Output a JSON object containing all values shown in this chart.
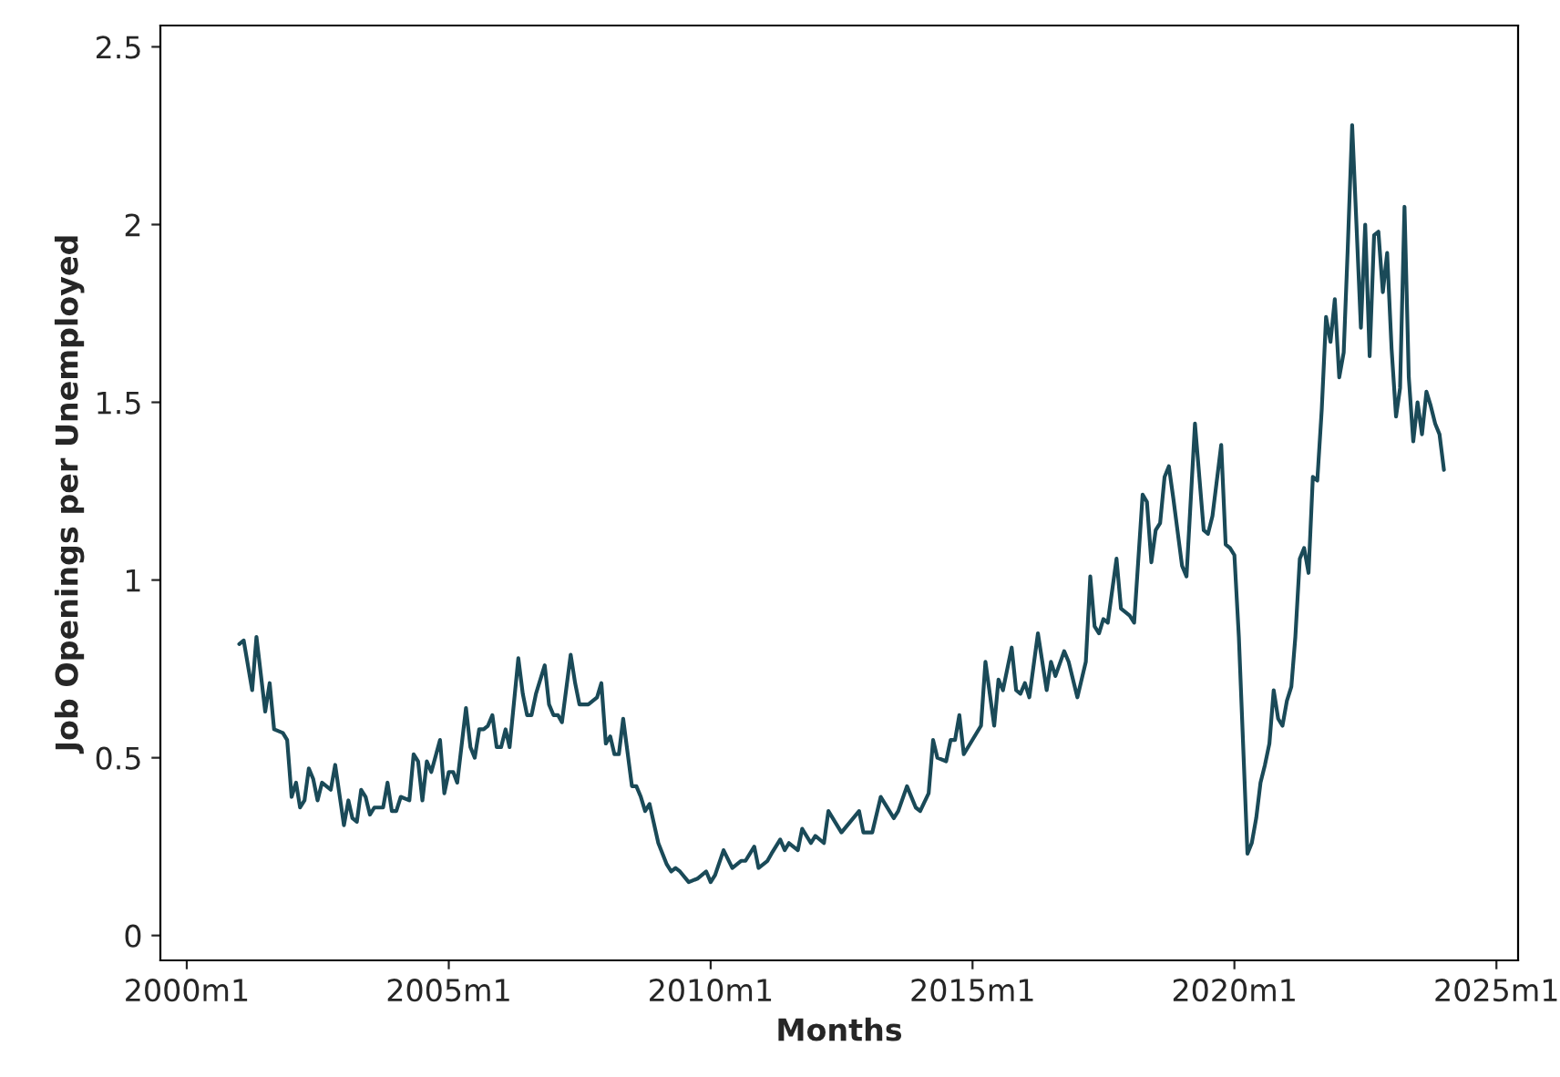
{
  "chart_data": {
    "type": "line",
    "xlabel": "Months",
    "ylabel": "Job Openings per Unemployed",
    "x": [
      "2001-01",
      "2001-02",
      "2001-04",
      "2001-05",
      "2001-07",
      "2001-08",
      "2001-09",
      "2001-11",
      "2001-12",
      "2002-01",
      "2002-02",
      "2002-03",
      "2002-04",
      "2002-05",
      "2002-06",
      "2002-07",
      "2002-08",
      "2002-09",
      "2002-10",
      "2002-11",
      "2003-01",
      "2003-02",
      "2003-03",
      "2003-04",
      "2003-05",
      "2003-06",
      "2003-07",
      "2003-08",
      "2003-10",
      "2003-11",
      "2003-12",
      "2004-01",
      "2004-02",
      "2004-04",
      "2004-05",
      "2004-06",
      "2004-07",
      "2004-08",
      "2004-09",
      "2004-11",
      "2004-12",
      "2005-01",
      "2005-02",
      "2005-03",
      "2005-05",
      "2005-06",
      "2005-07",
      "2005-08",
      "2005-09",
      "2005-10",
      "2005-11",
      "2005-12",
      "2006-01",
      "2006-02",
      "2006-03",
      "2006-05",
      "2006-06",
      "2006-07",
      "2006-08",
      "2006-09",
      "2006-11",
      "2006-12",
      "2007-01",
      "2007-02",
      "2007-03",
      "2007-05",
      "2007-06",
      "2007-07",
      "2007-09",
      "2007-11",
      "2007-12",
      "2008-01",
      "2008-02",
      "2008-03",
      "2008-04",
      "2008-05",
      "2008-07",
      "2008-08",
      "2008-09",
      "2008-10",
      "2008-11",
      "2009-01",
      "2009-03",
      "2009-04",
      "2009-05",
      "2009-06",
      "2009-08",
      "2009-10",
      "2009-12",
      "2010-01",
      "2010-02",
      "2010-04",
      "2010-06",
      "2010-08",
      "2010-09",
      "2010-11",
      "2010-12",
      "2011-02",
      "2011-03",
      "2011-05",
      "2011-06",
      "2011-07",
      "2011-09",
      "2011-10",
      "2011-12",
      "2012-01",
      "2012-03",
      "2012-04",
      "2012-07",
      "2012-11",
      "2012-12",
      "2013-02",
      "2013-04",
      "2013-07",
      "2013-08",
      "2013-10",
      "2013-12",
      "2014-01",
      "2014-03",
      "2014-04",
      "2014-05",
      "2014-07",
      "2014-08",
      "2014-09",
      "2014-10",
      "2014-11",
      "2015-03",
      "2015-04",
      "2015-06",
      "2015-07",
      "2015-08",
      "2015-10",
      "2015-11",
      "2015-12",
      "2016-01",
      "2016-02",
      "2016-04",
      "2016-06",
      "2016-07",
      "2016-08",
      "2016-10",
      "2016-11",
      "2017-01",
      "2017-03",
      "2017-04",
      "2017-05",
      "2017-06",
      "2017-07",
      "2017-08",
      "2017-10",
      "2017-11",
      "2018-01",
      "2018-02",
      "2018-04",
      "2018-05",
      "2018-06",
      "2018-07",
      "2018-08",
      "2018-09",
      "2018-10",
      "2018-11",
      "2019-01",
      "2019-02",
      "2019-04",
      "2019-06",
      "2019-07",
      "2019-08",
      "2019-10",
      "2019-11",
      "2019-12",
      "2020-01",
      "2020-02",
      "2020-04",
      "2020-05",
      "2020-06",
      "2020-07",
      "2020-08",
      "2020-09",
      "2020-10",
      "2020-11",
      "2020-12",
      "2021-01",
      "2021-02",
      "2021-03",
      "2021-04",
      "2021-05",
      "2021-06",
      "2021-07",
      "2021-08",
      "2021-09",
      "2021-10",
      "2021-11",
      "2021-12",
      "2022-01",
      "2022-02",
      "2022-03",
      "2022-04",
      "2022-05",
      "2022-06",
      "2022-07",
      "2022-08",
      "2022-09",
      "2022-10",
      "2022-11",
      "2022-12",
      "2023-01",
      "2023-02",
      "2023-03",
      "2023-04",
      "2023-05",
      "2023-06",
      "2023-07",
      "2023-08",
      "2023-09",
      "2023-10",
      "2023-11",
      "2023-12",
      "2024-01"
    ],
    "series": [
      {
        "color": "#1a4a58",
        "values": [
          0.82,
          0.83,
          0.69,
          0.84,
          0.63,
          0.71,
          0.58,
          0.57,
          0.55,
          0.39,
          0.43,
          0.36,
          0.38,
          0.47,
          0.44,
          0.38,
          0.43,
          0.42,
          0.41,
          0.48,
          0.31,
          0.38,
          0.33,
          0.32,
          0.41,
          0.39,
          0.34,
          0.36,
          0.36,
          0.43,
          0.35,
          0.35,
          0.39,
          0.38,
          0.51,
          0.49,
          0.38,
          0.49,
          0.46,
          0.55,
          0.4,
          0.46,
          0.46,
          0.43,
          0.64,
          0.53,
          0.5,
          0.58,
          0.58,
          0.59,
          0.62,
          0.53,
          0.53,
          0.58,
          0.53,
          0.78,
          0.68,
          0.62,
          0.62,
          0.68,
          0.76,
          0.65,
          0.62,
          0.62,
          0.6,
          0.79,
          0.71,
          0.65,
          0.65,
          0.67,
          0.71,
          0.54,
          0.56,
          0.51,
          0.51,
          0.61,
          0.42,
          0.42,
          0.39,
          0.35,
          0.37,
          0.26,
          0.2,
          0.18,
          0.19,
          0.18,
          0.15,
          0.16,
          0.18,
          0.15,
          0.17,
          0.24,
          0.19,
          0.21,
          0.21,
          0.25,
          0.19,
          0.21,
          0.23,
          0.27,
          0.24,
          0.26,
          0.24,
          0.3,
          0.26,
          0.28,
          0.26,
          0.35,
          0.29,
          0.35,
          0.29,
          0.29,
          0.39,
          0.33,
          0.35,
          0.42,
          0.36,
          0.35,
          0.4,
          0.55,
          0.5,
          0.49,
          0.55,
          0.55,
          0.62,
          0.51,
          0.59,
          0.77,
          0.59,
          0.72,
          0.69,
          0.81,
          0.69,
          0.68,
          0.71,
          0.67,
          0.85,
          0.69,
          0.77,
          0.73,
          0.8,
          0.77,
          0.67,
          0.77,
          1.01,
          0.87,
          0.85,
          0.89,
          0.88,
          1.06,
          0.92,
          0.9,
          0.88,
          1.24,
          1.22,
          1.05,
          1.14,
          1.16,
          1.29,
          1.32,
          1.23,
          1.04,
          1.01,
          1.44,
          1.14,
          1.13,
          1.18,
          1.38,
          1.1,
          1.09,
          1.07,
          0.84,
          0.23,
          0.26,
          0.33,
          0.43,
          0.48,
          0.54,
          0.69,
          0.61,
          0.59,
          0.66,
          0.7,
          0.84,
          1.06,
          1.09,
          1.02,
          1.29,
          1.28,
          1.48,
          1.74,
          1.67,
          1.79,
          1.57,
          1.64,
          1.93,
          2.28,
          2.0,
          1.71,
          2.0,
          1.63,
          1.97,
          1.98,
          1.81,
          1.92,
          1.65,
          1.46,
          1.54,
          2.05,
          1.57,
          1.39,
          1.5,
          1.41,
          1.53,
          1.49,
          1.44,
          1.41,
          1.31
        ]
      }
    ],
    "xlim": [
      "1999-07",
      "2025-06"
    ],
    "ylim": [
      -0.07,
      2.56
    ],
    "xticks": [
      {
        "value": "2000-01",
        "label": "2000m1"
      },
      {
        "value": "2005-01",
        "label": "2005m1"
      },
      {
        "value": "2010-01",
        "label": "2010m1"
      },
      {
        "value": "2015-01",
        "label": "2015m1"
      },
      {
        "value": "2020-01",
        "label": "2020m1"
      },
      {
        "value": "2025-01",
        "label": "2025m1"
      }
    ],
    "yticks": [
      0,
      {
        "value": 0.5,
        "label": "0.5"
      },
      1,
      {
        "value": 1.5,
        "label": "1.5"
      },
      2,
      {
        "value": 2.5,
        "label": "2.5"
      }
    ],
    "marker": "none",
    "line_style": "solid"
  }
}
